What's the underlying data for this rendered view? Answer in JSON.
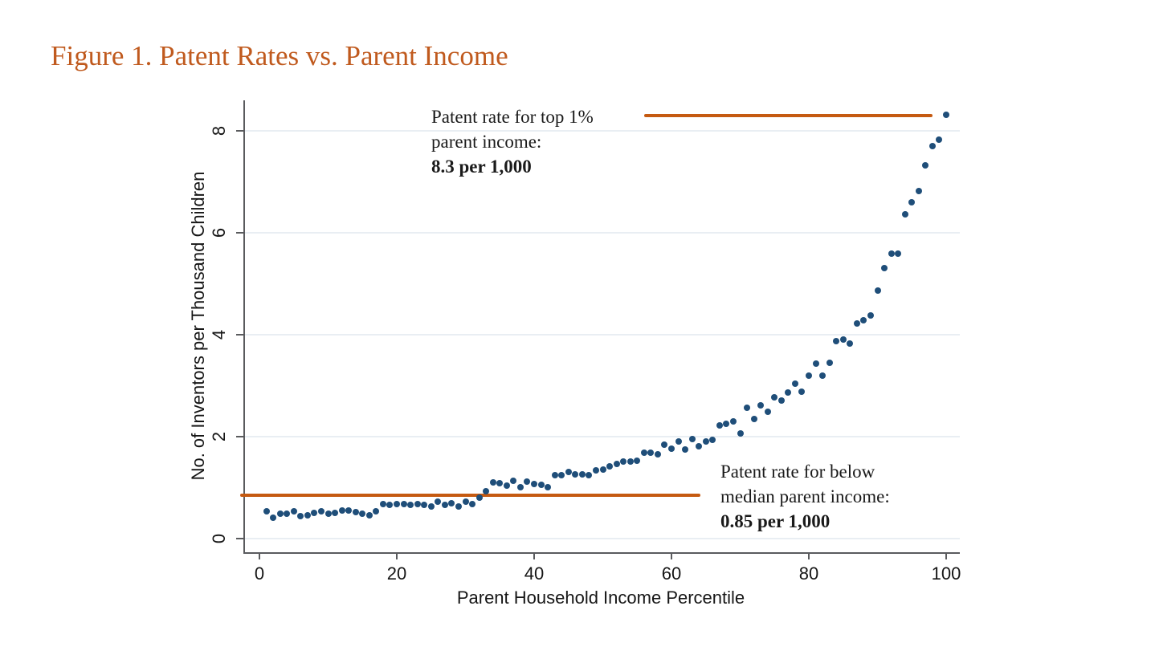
{
  "page": {
    "title": "Figure 1. Patent Rates vs. Parent Income"
  },
  "chart_data": {
    "type": "scatter",
    "title": "Figure 1. Patent Rates vs. Parent Income",
    "xlabel": "Parent Household Income Percentile",
    "ylabel": "No. of Inventors per Thousand Children",
    "xticks": [
      0,
      20,
      40,
      60,
      80,
      100
    ],
    "yticks": [
      0,
      2,
      4,
      6,
      8
    ],
    "xlim": [
      -2,
      102
    ],
    "ylim": [
      -0.3,
      8.85
    ],
    "grid": true,
    "point_color": "#1f4e79",
    "accent_color": "#c55a11",
    "x": [
      1,
      2,
      3,
      4,
      5,
      6,
      7,
      8,
      9,
      10,
      11,
      12,
      13,
      14,
      15,
      16,
      17,
      18,
      19,
      20,
      21,
      22,
      23,
      24,
      25,
      26,
      27,
      28,
      29,
      30,
      31,
      32,
      33,
      34,
      35,
      36,
      37,
      38,
      39,
      40,
      41,
      42,
      43,
      44,
      45,
      46,
      47,
      48,
      49,
      50,
      51,
      52,
      53,
      54,
      55,
      56,
      57,
      58,
      59,
      60,
      61,
      62,
      63,
      64,
      65,
      66,
      67,
      68,
      69,
      70,
      71,
      72,
      73,
      74,
      75,
      76,
      77,
      78,
      79,
      80,
      81,
      82,
      83,
      84,
      85,
      86,
      87,
      88,
      89,
      90,
      91,
      92,
      93,
      94,
      95,
      96,
      97,
      98,
      99,
      100
    ],
    "y": [
      0.53,
      0.41,
      0.48,
      0.49,
      0.53,
      0.44,
      0.45,
      0.5,
      0.54,
      0.48,
      0.51,
      0.55,
      0.55,
      0.52,
      0.48,
      0.45,
      0.54,
      0.68,
      0.66,
      0.67,
      0.68,
      0.66,
      0.68,
      0.66,
      0.63,
      0.72,
      0.66,
      0.7,
      0.63,
      0.73,
      0.68,
      0.8,
      0.93,
      1.1,
      1.08,
      1.04,
      1.13,
      1.0,
      1.12,
      1.07,
      1.05,
      1.0,
      1.24,
      1.25,
      1.31,
      1.26,
      1.26,
      1.24,
      1.33,
      1.36,
      1.41,
      1.47,
      1.51,
      1.51,
      1.52,
      1.68,
      1.68,
      1.65,
      1.84,
      1.76,
      1.9,
      1.75,
      1.95,
      1.81,
      1.9,
      1.94,
      2.22,
      2.25,
      2.29,
      2.06,
      2.57,
      2.35,
      2.61,
      2.49,
      2.77,
      2.71,
      2.86,
      3.03,
      2.88,
      3.19,
      3.43,
      3.19,
      3.44,
      3.87,
      3.91,
      3.82,
      4.22,
      4.28,
      4.38,
      4.87,
      5.31,
      5.59,
      5.59,
      6.36,
      6.6,
      6.81,
      7.32,
      7.7,
      7.82,
      8.31
    ],
    "reference_lines": [
      {
        "name": "top-1-percent-line",
        "value": 8.3,
        "x_start": 56,
        "x_end": 98,
        "color": "#c55a11"
      },
      {
        "name": "below-median-line",
        "value": 0.85,
        "x_start": -2.8,
        "x_end": 64.2,
        "color": "#c55a11"
      }
    ],
    "legend_position": "none"
  },
  "annotations": {
    "top": {
      "line1": "Patent rate for top 1%",
      "line2": "parent income:",
      "line3": "8.3 per 1,000"
    },
    "bottom": {
      "line1": "Patent rate for below",
      "line2": "median parent income:",
      "line3": "0.85 per 1,000"
    }
  },
  "colors": {
    "title": "#c05a1e",
    "points": "#1f4e79",
    "reference_line": "#c55a11",
    "axis": "#5a5b5e",
    "gridline": "#e9eef3",
    "text": "#161616"
  }
}
